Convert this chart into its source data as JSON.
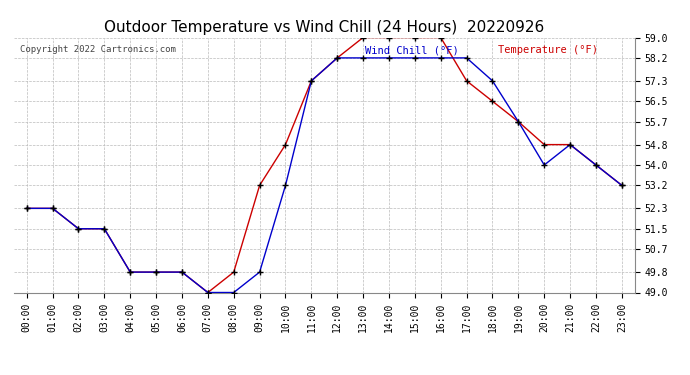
{
  "title": "Outdoor Temperature vs Wind Chill (24 Hours)  20220926",
  "copyright": "Copyright 2022 Cartronics.com",
  "legend_wind": "Wind Chill (°F)",
  "legend_temp": "Temperature (°F)",
  "x_labels": [
    "00:00",
    "01:00",
    "02:00",
    "03:00",
    "04:00",
    "05:00",
    "06:00",
    "07:00",
    "08:00",
    "09:00",
    "10:00",
    "11:00",
    "12:00",
    "13:00",
    "14:00",
    "15:00",
    "16:00",
    "17:00",
    "18:00",
    "19:00",
    "20:00",
    "21:00",
    "22:00",
    "23:00"
  ],
  "temperature": [
    52.3,
    52.3,
    51.5,
    51.5,
    49.8,
    49.8,
    49.8,
    49.0,
    49.8,
    53.2,
    54.8,
    57.3,
    58.2,
    59.0,
    59.0,
    59.0,
    59.0,
    57.3,
    56.5,
    55.7,
    54.8,
    54.8,
    54.0,
    53.2
  ],
  "wind_chill": [
    52.3,
    52.3,
    51.5,
    51.5,
    49.8,
    49.8,
    49.8,
    49.0,
    49.0,
    49.8,
    53.2,
    57.3,
    58.2,
    58.2,
    58.2,
    58.2,
    58.2,
    58.2,
    57.3,
    55.7,
    54.0,
    54.8,
    54.0,
    53.2
  ],
  "temp_color": "#cc0000",
  "wind_color": "#0000cc",
  "ylim_min": 49.0,
  "ylim_max": 59.0,
  "yticks": [
    49.0,
    49.8,
    50.7,
    51.5,
    52.3,
    53.2,
    54.0,
    54.8,
    55.7,
    56.5,
    57.3,
    58.2,
    59.0
  ],
  "bg_color": "#ffffff",
  "grid_color": "#bbbbbb",
  "title_fontsize": 11,
  "copyright_fontsize": 6.5,
  "legend_fontsize": 7.5,
  "tick_fontsize": 7,
  "marker": "+"
}
